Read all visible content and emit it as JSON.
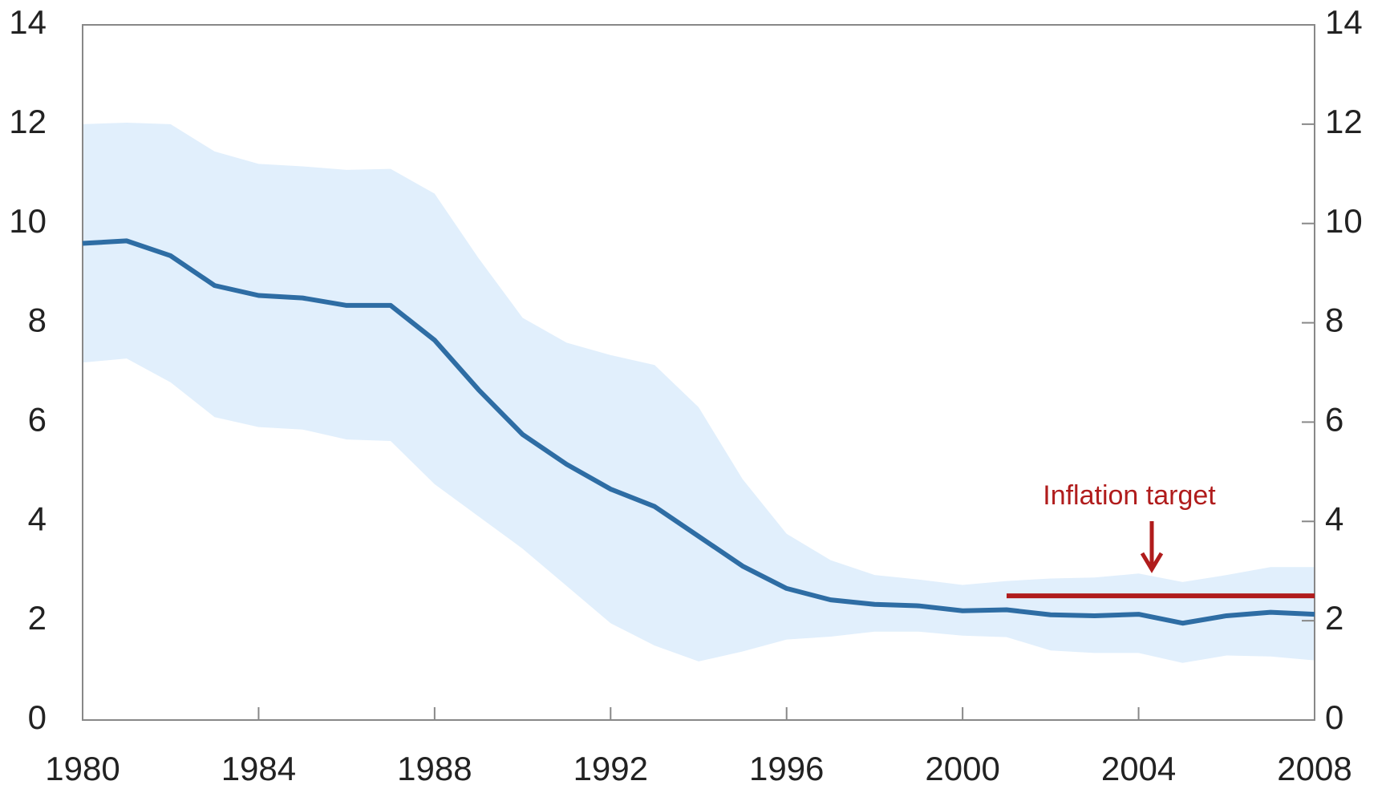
{
  "chart_data": {
    "type": "line",
    "x": [
      1980,
      1981,
      1982,
      1983,
      1984,
      1985,
      1986,
      1987,
      1988,
      1989,
      1990,
      1991,
      1992,
      1993,
      1994,
      1995,
      1996,
      1997,
      1998,
      1999,
      2000,
      2001,
      2002,
      2003,
      2004,
      2005,
      2006,
      2007,
      2008
    ],
    "series": [
      {
        "color": "#2e6da4",
        "values": [
          9.6,
          9.65,
          9.35,
          8.75,
          8.55,
          8.5,
          8.35,
          8.35,
          7.65,
          6.65,
          5.75,
          5.15,
          4.65,
          4.3,
          3.7,
          3.1,
          2.65,
          2.42,
          2.33,
          2.3,
          2.2,
          2.22,
          2.12,
          2.1,
          2.13,
          1.95,
          2.1,
          2.17,
          2.13
        ]
      }
    ],
    "band": {
      "color": "#e1effc",
      "upper": [
        12.0,
        12.03,
        12.0,
        11.45,
        11.2,
        11.15,
        11.08,
        11.1,
        10.6,
        9.3,
        8.1,
        7.6,
        7.35,
        7.15,
        6.3,
        4.85,
        3.75,
        3.22,
        2.92,
        2.83,
        2.72,
        2.8,
        2.85,
        2.87,
        2.95,
        2.78,
        2.92,
        3.08,
        3.08
      ],
      "lower": [
        7.2,
        7.28,
        6.8,
        6.1,
        5.9,
        5.85,
        5.65,
        5.62,
        4.75,
        4.1,
        3.45,
        2.7,
        1.95,
        1.5,
        1.18,
        1.38,
        1.62,
        1.68,
        1.78,
        1.78,
        1.7,
        1.67,
        1.4,
        1.35,
        1.35,
        1.15,
        1.3,
        1.28,
        1.2
      ]
    },
    "target": {
      "x": [
        2001,
        2008
      ],
      "values": [
        2.5,
        2.5
      ],
      "color": "#b01c1c"
    },
    "annotation": "Inflation target",
    "xlim": [
      1980,
      2008
    ],
    "xticks": [
      1980,
      1984,
      1988,
      1992,
      1996,
      2000,
      2004,
      2008
    ],
    "ylim": [
      0,
      14
    ],
    "yticks": [
      0,
      2,
      4,
      6,
      8,
      10,
      12,
      14
    ],
    "y2lim": [
      0,
      14
    ],
    "y2ticks": [
      0,
      2,
      4,
      6,
      8,
      10,
      12,
      14
    ]
  }
}
